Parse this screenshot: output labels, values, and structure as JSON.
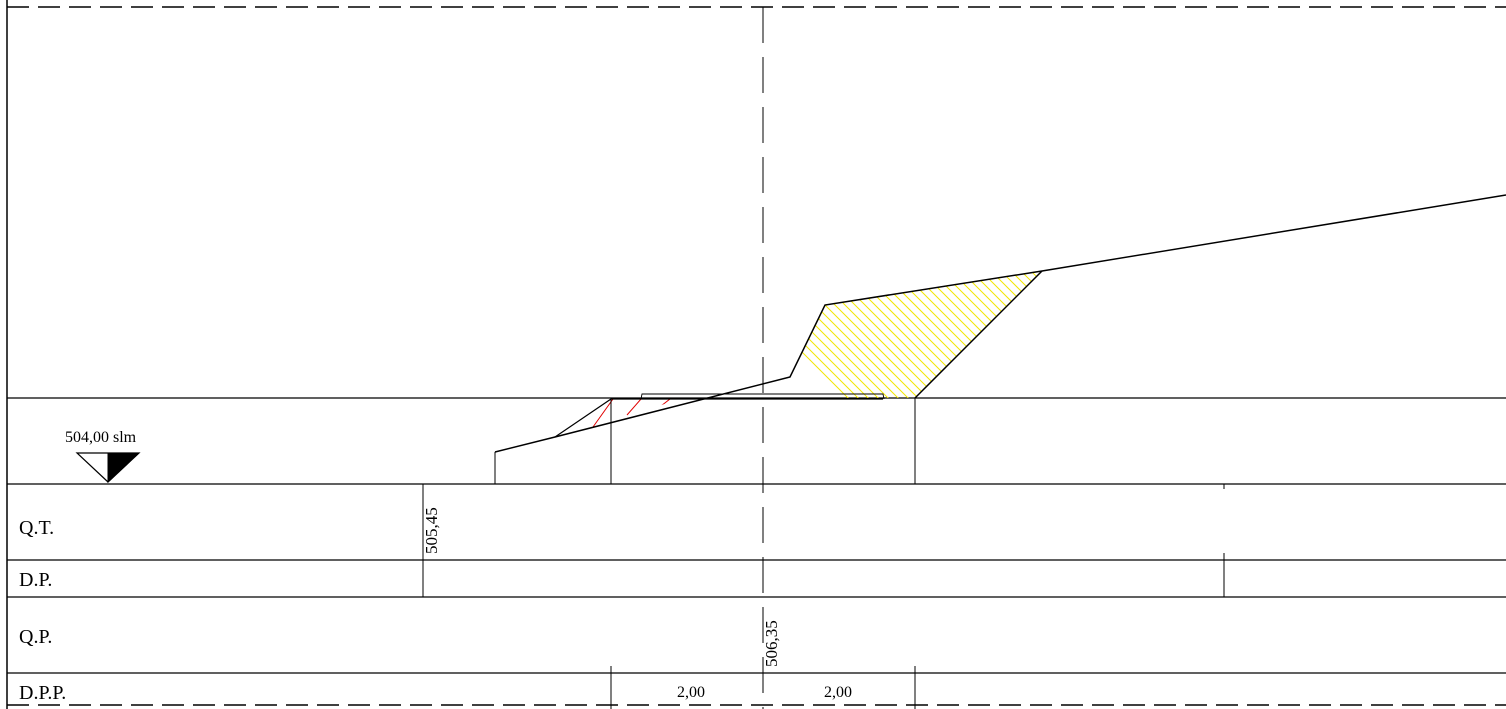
{
  "section": {
    "reference_level": "504,00 slm"
  },
  "rows": {
    "qt": "Q.T.",
    "dp": "D.P.",
    "qp": "Q.P.",
    "dpp": "D.P.P."
  },
  "values": {
    "qt_value": "505,45",
    "qp_value": "506,35",
    "dpp_left": "2,00",
    "dpp_right": "2,00"
  },
  "colors": {
    "line": "#000000",
    "fill_hatch": "#f2e600",
    "cut_hatch": "#e00000"
  }
}
